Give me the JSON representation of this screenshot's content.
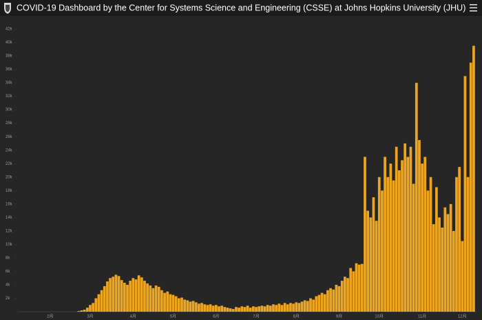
{
  "header": {
    "title": "COVID-19 Dashboard by the Center for Systems Science and Engineering (CSSE) at Johns Hopkins University (JHU)"
  },
  "chart_data": {
    "type": "bar",
    "color": "#eda51f",
    "grid": false,
    "categories": [
      null,
      null,
      null,
      null,
      null,
      null,
      null,
      null,
      null,
      null,
      null,
      "2月",
      null,
      null,
      null,
      null,
      null,
      null,
      null,
      null,
      null,
      null,
      null,
      null,
      null,
      "3月",
      null,
      null,
      null,
      null,
      null,
      null,
      null,
      null,
      null,
      null,
      null,
      null,
      null,
      null,
      "4月",
      null,
      null,
      null,
      null,
      null,
      null,
      null,
      null,
      null,
      null,
      null,
      null,
      null,
      "5月",
      null,
      null,
      null,
      null,
      null,
      null,
      null,
      null,
      null,
      null,
      null,
      null,
      null,
      null,
      "6月",
      null,
      null,
      null,
      null,
      null,
      null,
      null,
      null,
      null,
      null,
      null,
      null,
      null,
      "7月",
      null,
      null,
      null,
      null,
      null,
      null,
      null,
      null,
      null,
      null,
      null,
      null,
      null,
      "8月",
      null,
      null,
      null,
      null,
      null,
      null,
      null,
      null,
      null,
      null,
      null,
      null,
      null,
      null,
      "9月",
      null,
      null,
      null,
      null,
      null,
      null,
      null,
      null,
      null,
      null,
      null,
      null,
      null,
      "10月",
      null,
      null,
      null,
      null,
      null,
      null,
      null,
      null,
      null,
      null,
      null,
      null,
      null,
      null,
      "11月",
      null,
      null,
      null,
      null,
      null,
      null,
      null,
      null,
      null,
      null,
      null,
      null,
      null,
      "12月",
      null,
      null,
      null,
      null
    ],
    "values": [
      0,
      0,
      0,
      0,
      0,
      0,
      0,
      0,
      0,
      0,
      0,
      0,
      0,
      0,
      0,
      0,
      0,
      0,
      0,
      0,
      0,
      100,
      200,
      300,
      600,
      1000,
      1300,
      2000,
      2600,
      3200,
      3800,
      4500,
      5000,
      5200,
      5500,
      5300,
      4700,
      4300,
      4000,
      4600,
      5000,
      4800,
      5400,
      5100,
      4600,
      4200,
      3900,
      3500,
      3900,
      3700,
      3200,
      2800,
      3000,
      2600,
      2500,
      2300,
      2000,
      2100,
      1800,
      1700,
      1500,
      1600,
      1400,
      1200,
      1300,
      1100,
      1000,
      1100,
      900,
      1000,
      800,
      900,
      700,
      600,
      500,
      400,
      700,
      600,
      800,
      700,
      900,
      600,
      800,
      700,
      800,
      900,
      800,
      1000,
      900,
      1100,
      1000,
      1200,
      1000,
      1300,
      1100,
      1300,
      1200,
      1400,
      1300,
      1500,
      1700,
      1600,
      2000,
      1800,
      2300,
      2500,
      2800,
      2600,
      3200,
      3500,
      3300,
      4000,
      3800,
      4600,
      5200,
      5000,
      6500,
      6000,
      7200,
      7000,
      7100,
      23000,
      15000,
      14000,
      17000,
      13500,
      20000,
      18000,
      23000,
      20000,
      22000,
      19500,
      24500,
      21000,
      22500,
      25000,
      23000,
      24500,
      19000,
      34000,
      25500,
      22000,
      23000,
      18000,
      20000,
      13000,
      18500,
      14000,
      12500,
      15500,
      14500,
      16000,
      12000,
      20000,
      21500,
      10500,
      35000,
      20000,
      37000,
      39500
    ],
    "ylim": [
      0,
      42000
    ],
    "yticks": [
      {
        "value": 2000,
        "label": "2k"
      },
      {
        "value": 4000,
        "label": "4k"
      },
      {
        "value": 6000,
        "label": "6k"
      },
      {
        "value": 8000,
        "label": "8k"
      },
      {
        "value": 10000,
        "label": "10k"
      },
      {
        "value": 12000,
        "label": "12k"
      },
      {
        "value": 14000,
        "label": "14k"
      },
      {
        "value": 16000,
        "label": "16k"
      },
      {
        "value": 18000,
        "label": "18k"
      },
      {
        "value": 20000,
        "label": "20k"
      },
      {
        "value": 22000,
        "label": "22k"
      },
      {
        "value": 24000,
        "label": "24k"
      },
      {
        "value": 26000,
        "label": "26k"
      },
      {
        "value": 28000,
        "label": "28k"
      },
      {
        "value": 30000,
        "label": "30k"
      },
      {
        "value": 32000,
        "label": "32k"
      },
      {
        "value": 34000,
        "label": "34k"
      },
      {
        "value": 36000,
        "label": "36k"
      },
      {
        "value": 38000,
        "label": "38k"
      },
      {
        "value": 40000,
        "label": "40k"
      },
      {
        "value": 42000,
        "label": "42k"
      }
    ]
  }
}
